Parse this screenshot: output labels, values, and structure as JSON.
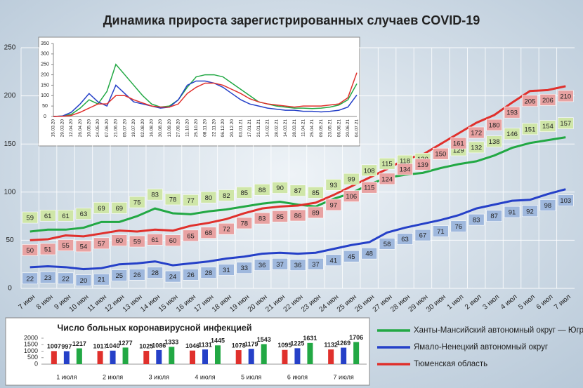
{
  "chart_data": [
    {
      "type": "line",
      "title": "Динамика прироста зарегистрированных случаев COVID-19",
      "categories": [
        "7 июн",
        "8 июн",
        "9 июн",
        "10 июн",
        "11 июн",
        "12 июн",
        "13 июн",
        "14 июн",
        "15 июн",
        "16 июн",
        "17 июн",
        "18 июн",
        "19 июн",
        "20 июн",
        "21 июн",
        "22 июн",
        "23 июн",
        "24 июн",
        "25 июн",
        "26 июн",
        "27 июн",
        "28 июн",
        "29 июн",
        "30 июн",
        "1 июл",
        "2 июл",
        "3 июл",
        "4 июл",
        "5 июл",
        "6 июл",
        "7 июл"
      ],
      "series": [
        {
          "name": "Ханты-Мансийский автономный округ — Югра",
          "color": "#22a844",
          "label_color": "#cfe6a8",
          "values": [
            59,
            61,
            61,
            63,
            69,
            69,
            75,
            83,
            78,
            77,
            80,
            82,
            85,
            88,
            90,
            87,
            85,
            93,
            99,
            108,
            115,
            118,
            120,
            125,
            129,
            132,
            138,
            146,
            151,
            154,
            157
          ]
        },
        {
          "name": "Ямало-Ненецкий автономный округ",
          "color": "#2540c8",
          "label_color": "#9fb8dd",
          "values": [
            22,
            23,
            22,
            20,
            21,
            25,
            26,
            28,
            24,
            26,
            28,
            31,
            33,
            36,
            37,
            36,
            37,
            41,
            45,
            48,
            58,
            63,
            67,
            71,
            76,
            83,
            87,
            91,
            92,
            98,
            103
          ]
        },
        {
          "name": "Тюменская область",
          "color": "#e0302c",
          "label_color": "#e8a2a2",
          "values": [
            50,
            51,
            55,
            54,
            57,
            60,
            59,
            61,
            60,
            65,
            68,
            72,
            78,
            83,
            85,
            86,
            89,
            97,
            106,
            115,
            124,
            134,
            139,
            150,
            161,
            172,
            180,
            193,
            205,
            206,
            210
          ]
        }
      ],
      "ylim": [
        0,
        250
      ],
      "yticks": [
        0,
        50,
        100,
        150,
        200,
        250
      ],
      "grid": true
    },
    {
      "type": "line",
      "categories": [
        "15.03.20",
        "29.03.20",
        "12.04.20",
        "26.04.20",
        "10.05.20",
        "24.05.20",
        "07.06.20",
        "21.06.20",
        "05.07.20",
        "19.07.20",
        "02.08.20",
        "16.08.20",
        "30.08.20",
        "13.09.20",
        "27.09.20",
        "11.10.20",
        "25.10.20",
        "08.11.20",
        "22.11.20",
        "06.12.20",
        "20.12.20",
        "03.01.21",
        "17.01.21",
        "31.01.21",
        "14.02.21",
        "28.02.21",
        "14.03.21",
        "28.03.21",
        "11.04.21",
        "25.04.21",
        "09.05.21",
        "23.05.21",
        "06.06.21",
        "20.06.21",
        "04.07.21"
      ],
      "series": [
        {
          "color": "#22a844",
          "values": [
            0,
            2,
            10,
            40,
            80,
            60,
            120,
            250,
            200,
            150,
            100,
            60,
            45,
            50,
            80,
            140,
            190,
            200,
            200,
            190,
            160,
            130,
            100,
            70,
            60,
            50,
            45,
            40,
            40,
            38,
            40,
            45,
            55,
            80,
            157
          ]
        },
        {
          "color": "#2540c8",
          "values": [
            0,
            2,
            20,
            60,
            110,
            70,
            50,
            150,
            110,
            70,
            60,
            50,
            40,
            45,
            80,
            150,
            170,
            170,
            160,
            140,
            110,
            80,
            60,
            50,
            40,
            35,
            30,
            30,
            25,
            25,
            22,
            25,
            30,
            45,
            103
          ]
        },
        {
          "color": "#e0302c",
          "values": [
            0,
            1,
            5,
            20,
            40,
            60,
            60,
            100,
            100,
            80,
            65,
            50,
            45,
            45,
            60,
            110,
            140,
            160,
            160,
            150,
            130,
            110,
            85,
            70,
            60,
            55,
            50,
            45,
            50,
            50,
            50,
            55,
            60,
            90,
            210
          ]
        }
      ],
      "ylim": [
        0,
        350
      ],
      "yticks": [
        0,
        50,
        100,
        150,
        200,
        250,
        300,
        350
      ],
      "grid": false
    },
    {
      "type": "bar",
      "title": "Число больных коронавирусной инфекцией",
      "categories": [
        "1 июля",
        "2 июля",
        "3 июля",
        "4 июля",
        "5 июля",
        "6 июля",
        "7 июля"
      ],
      "series": [
        {
          "color": "#e0302c",
          "values": [
            1007,
            1017,
            1025,
            1046,
            1078,
            1095,
            1132
          ]
        },
        {
          "color": "#2540c8",
          "values": [
            997,
            1040,
            1086,
            1131,
            1179,
            1225,
            1269
          ]
        },
        {
          "color": "#22a844",
          "values": [
            1217,
            1277,
            1333,
            1445,
            1543,
            1631,
            1706
          ]
        }
      ],
      "ylim": [
        0,
        2000
      ],
      "yticks": [
        0,
        500,
        1000,
        1500,
        2000
      ],
      "grid": false
    }
  ]
}
